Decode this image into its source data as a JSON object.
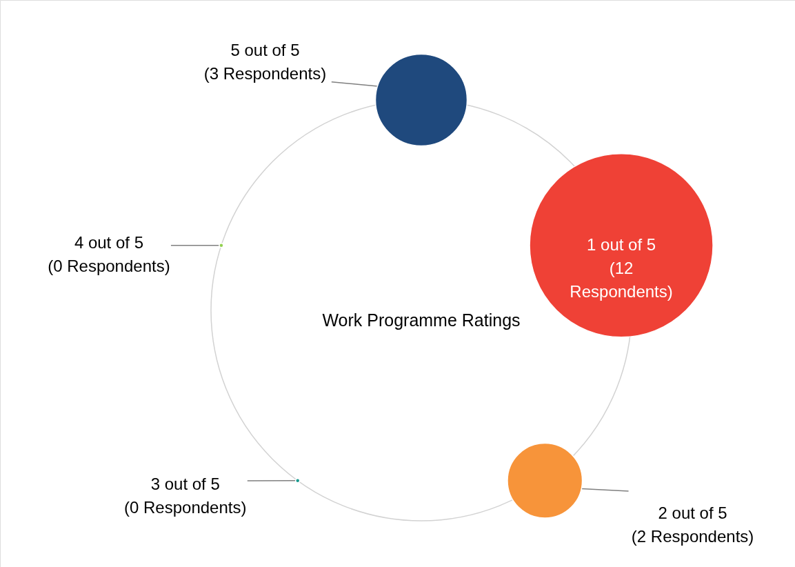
{
  "chart_data": {
    "type": "other",
    "title": "Work Programme Ratings",
    "categories": [
      "5 out of 5",
      "1 out of 5",
      "2 out of 5",
      "3 out of 5",
      "4 out of 5"
    ],
    "values": [
      3,
      12,
      2,
      0,
      0
    ],
    "value_labels": [
      "(3 Respondents)",
      "(12 Respondents)",
      "(2 Respondents)",
      "(0 Respondents)",
      "(0 Respondents)"
    ],
    "colors": [
      "#1f497d",
      "#ef4136",
      "#f7943a",
      "#1a9a8f",
      "#92d050"
    ]
  }
}
